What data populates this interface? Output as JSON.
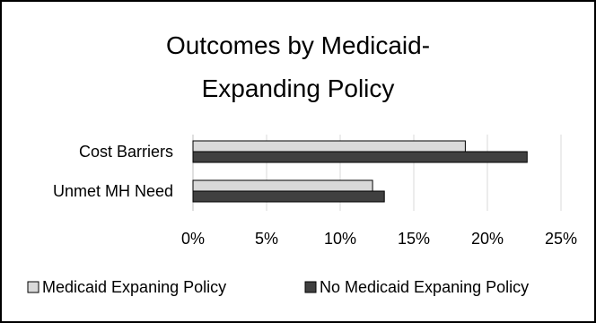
{
  "chart_data": {
    "type": "bar",
    "orientation": "horizontal",
    "title_lines": [
      "Outcomes by Medicaid-",
      "Expanding Policy"
    ],
    "categories": [
      "Cost Barriers",
      "Unmet MH Need"
    ],
    "series": [
      {
        "name": "Medicaid Expaning Policy",
        "values": [
          0.185,
          0.122
        ],
        "color": "#d9d9d9"
      },
      {
        "name": "No Medicaid Expaning Policy",
        "values": [
          0.227,
          0.13
        ],
        "color": "#404040"
      }
    ],
    "xlim": [
      0,
      0.25
    ],
    "x_ticks": [
      0,
      0.05,
      0.1,
      0.15,
      0.2,
      0.25
    ],
    "x_tick_labels": [
      "0%",
      "5%",
      "10%",
      "15%",
      "20%",
      "25%"
    ],
    "grid": "vertical",
    "legend_position": "bottom"
  }
}
